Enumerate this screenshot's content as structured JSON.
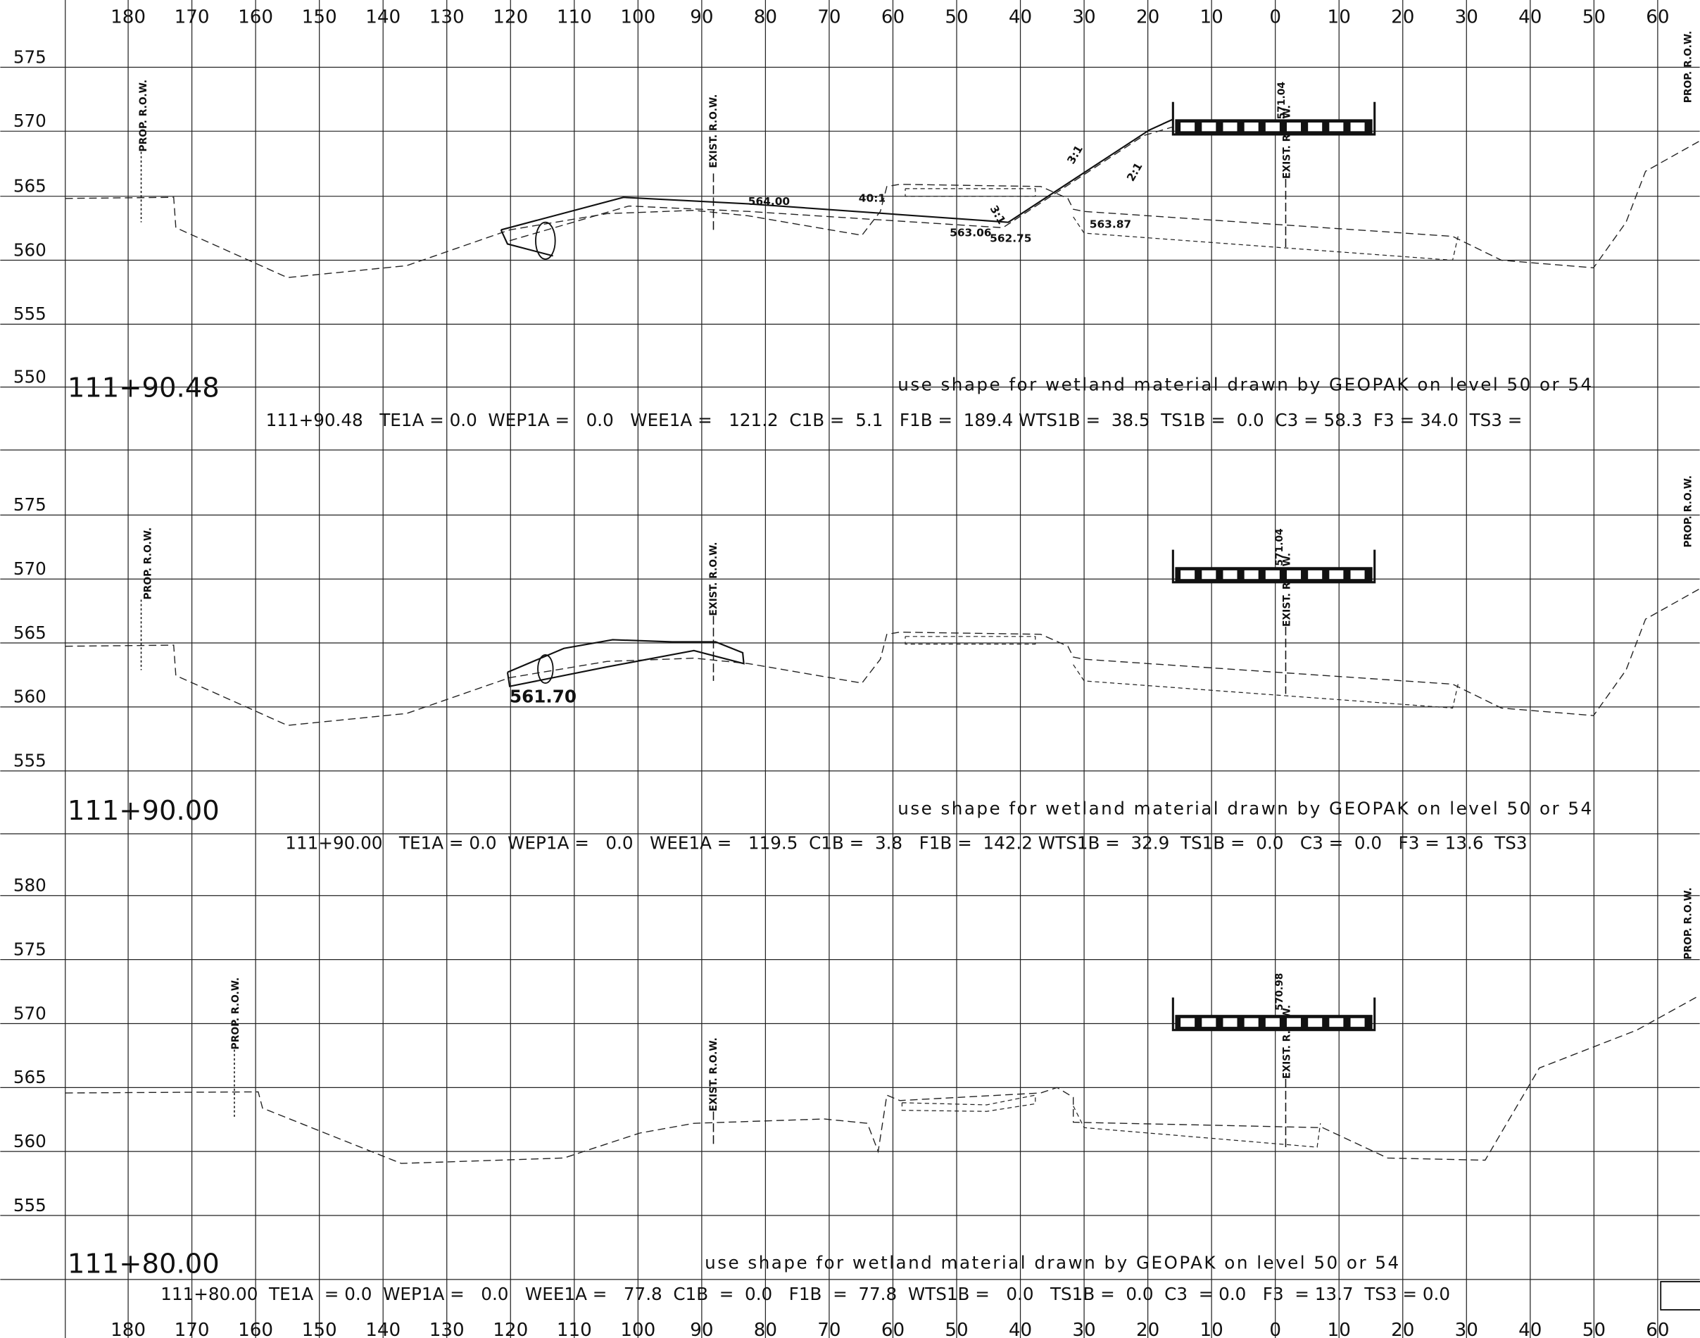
{
  "offsets": [
    "180",
    "170",
    "160",
    "150",
    "140",
    "130",
    "120",
    "110",
    "100",
    "90",
    "80",
    "70",
    "60",
    "50",
    "40",
    "30",
    "20",
    "10",
    "0",
    "10",
    "20",
    "30",
    "40",
    "50",
    "60"
  ],
  "sections": [
    {
      "station": "111+90.48",
      "elevations": [
        "575",
        "570",
        "565",
        "560",
        "555",
        "550"
      ],
      "note": "use shape for wetland material drawn by GEOPAK on level 50 or 54",
      "quantities": "111+90.48   TE1A = 0.0  WEP1A =   0.0   WEE1A =   121.2  C1B =  5.1   F1B =  189.4 WTS1B =  38.5  TS1B =  0.0  C3 = 58.3  F3 = 34.0  TS3 =",
      "annotations": [
        "PROP. R.O.W.",
        "EXIST. R.O.W.",
        "564.00",
        "40:1",
        "563.06",
        "562.75",
        "563.87",
        "3:1",
        "2:1",
        "3:1",
        "571.04",
        "EXIST. R.O.W.",
        "PROP. R.O.W."
      ]
    },
    {
      "station": "111+90.00",
      "elevations": [
        "575",
        "570",
        "565",
        "560",
        "555"
      ],
      "note": "use shape for wetland material drawn by GEOPAK on level 50 or 54",
      "quantities": "111+90.00   TE1A = 0.0  WEP1A =   0.0   WEE1A =   119.5  C1B =  3.8   F1B =  142.2 WTS1B =  32.9  TS1B =  0.0   C3 =  0.0   F3 = 13.6  TS3",
      "annotations": [
        "PROP. R.O.W.",
        "EXIST. R.O.W.",
        "561.70",
        "571.04",
        "EXIST. R.O.W.",
        "PROP. R.O.W."
      ]
    },
    {
      "station": "111+80.00",
      "elevations": [
        "580",
        "575",
        "570",
        "565",
        "560",
        "555"
      ],
      "note": "use shape for wetland material drawn by GEOPAK on level 50 or 54",
      "quantities": "111+80.00  TE1A  = 0.0  WEP1A =   0.0   WEE1A =   77.8  C1B  =  0.0   F1B  =  77.8  WTS1B =   0.0   TS1B =  0.0  C3  = 0.0   F3  = 13.7  TS3 = 0.0",
      "annotations": [
        "PROP. R.O.W.",
        "EXIST. R.O.W.",
        "570.98",
        "EXIST. R.O.W.",
        "PROP. R.O.W."
      ]
    }
  ]
}
